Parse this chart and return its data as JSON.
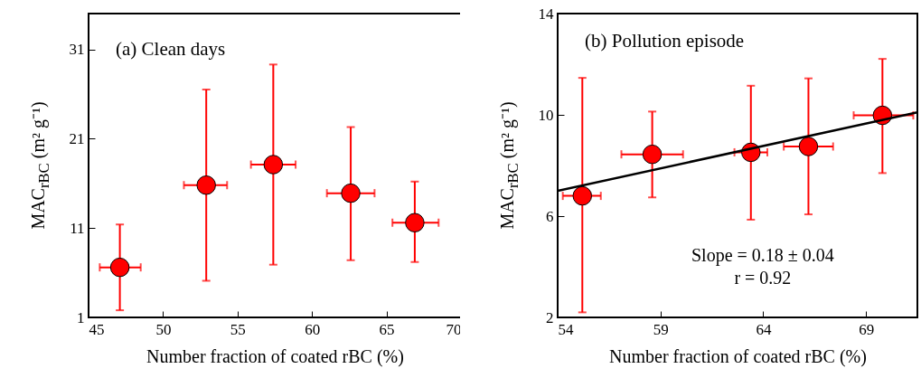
{
  "chart_data": [
    {
      "type": "scatter",
      "title": "(a) Clean days",
      "xlabel": "Number fraction of coated rBC (%)",
      "ylabel": "MAC$_{rBC}$ (m² g⁻¹)",
      "xlim": [
        45,
        70
      ],
      "xticks": [
        45,
        50,
        55,
        60,
        65,
        70
      ],
      "ylim": [
        1,
        35
      ],
      "yticks": [
        1,
        11,
        21,
        31
      ],
      "grid": false,
      "series": [
        {
          "color": "#ff0000",
          "marker": "circle",
          "x": [
            47.1,
            52.9,
            57.4,
            62.6,
            66.9
          ],
          "values": [
            6.6,
            15.8,
            18.1,
            14.9,
            11.6
          ],
          "errors": [
            [
              1.8,
              11.4
            ],
            [
              5.1,
              26.5
            ],
            [
              6.9,
              29.3
            ],
            [
              7.4,
              22.3
            ],
            [
              7.2,
              16.2
            ]
          ],
          "xerrors": [
            [
              45.75,
              48.5
            ],
            [
              51.4,
              54.3
            ],
            [
              55.9,
              58.9
            ],
            [
              61.0,
              64.2
            ],
            [
              65.4,
              68.5
            ]
          ]
        }
      ]
    },
    {
      "type": "scatter",
      "title": "(b) Pollution episode",
      "xlabel": "Number fraction of coated rBC (%)",
      "ylabel": "MAC$_{rBC}$ (m² g⁻¹)",
      "xlim": [
        54,
        71.5
      ],
      "xticks": [
        54,
        59,
        64,
        69
      ],
      "ylim": [
        2,
        14
      ],
      "yticks": [
        2,
        6,
        10,
        14
      ],
      "grid": false,
      "annotations": [
        "Slope = 0.18 ± 0.04",
        "r = 0.92"
      ],
      "series": [
        {
          "color": "#ff0000",
          "marker": "circle",
          "x": [
            55.2,
            58.6,
            63.4,
            66.2,
            69.8
          ],
          "values": [
            6.8,
            8.44,
            8.52,
            8.75,
            9.98
          ],
          "errors": [
            [
              2.2,
              11.46
            ],
            [
              6.74,
              10.13
            ],
            [
              5.86,
              11.15
            ],
            [
              6.07,
              11.44
            ],
            [
              7.7,
              12.21
            ]
          ],
          "xerrors": [
            [
              54.25,
              56.1
            ],
            [
              57.1,
              60.1
            ],
            [
              62.6,
              64.2
            ],
            [
              65.0,
              67.4
            ],
            [
              68.4,
              71.3
            ]
          ]
        },
        {
          "type": "line",
          "color": "#000000",
          "x": [
            54,
            71.5
          ],
          "values": [
            7.0,
            10.1
          ]
        }
      ]
    }
  ]
}
